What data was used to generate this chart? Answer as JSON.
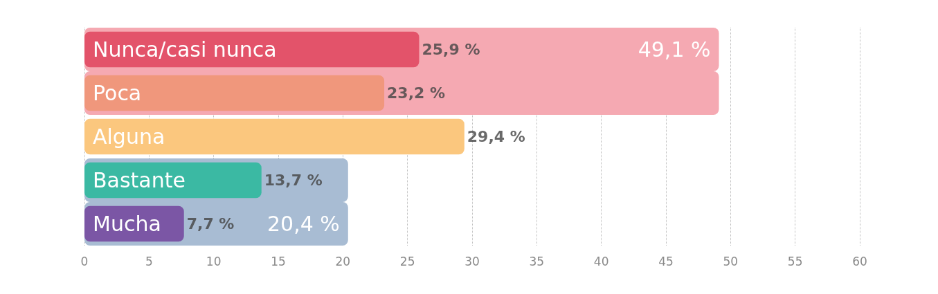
{
  "chart_data": {
    "type": "bar",
    "orientation": "horizontal",
    "categories": [
      "Nunca/casi nunca",
      "Poca",
      "Alguna",
      "Bastante",
      "Mucha"
    ],
    "series": [
      {
        "axis": "y2",
        "colors": [
          "#f5a9b2",
          "#f5a9b2",
          null,
          "#a8bcd3",
          "#a8bcd3"
        ],
        "values": [
          49.1,
          49.1,
          null,
          20.4,
          20.4
        ],
        "value_labels": [
          "49,1 %",
          null,
          null,
          null,
          "20,4 %"
        ]
      },
      {
        "colors": [
          "#e3536a",
          "#f0977c",
          "#fbc77e",
          "#3bb9a3",
          "#7b56a5"
        ],
        "values": [
          25.9,
          23.2,
          29.4,
          13.7,
          7.7
        ],
        "value_labels": [
          "25,9 %",
          "23,2 %",
          "29,4 %",
          "13,7 %",
          "7,7 %"
        ]
      }
    ],
    "xlim": [
      0,
      60
    ],
    "xticks": [
      0,
      5,
      10,
      15,
      20,
      25,
      30,
      35,
      40,
      45,
      50,
      55,
      60
    ],
    "grid": "x",
    "tick_labels": "x"
  }
}
